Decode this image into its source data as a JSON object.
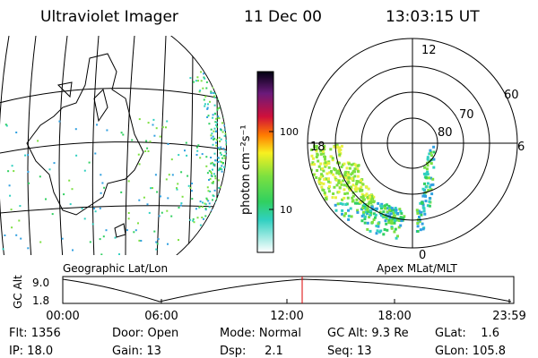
{
  "header": {
    "instrument": "Ultraviolet Imager",
    "date": "11 Dec 00",
    "time": "13:03:15 UT"
  },
  "colorbar": {
    "label": "photon cm⁻²s⁻¹",
    "ticks": [
      "100",
      "10"
    ]
  },
  "polar": {
    "mlt_labels": [
      "12",
      "6",
      "18",
      "0"
    ],
    "lat_labels": [
      "60",
      "70",
      "80"
    ]
  },
  "panel_labels": {
    "left": "Geographic Lat/Lon",
    "right": "Apex MLat/MLT"
  },
  "altitude": {
    "ylabel": "GC Alt",
    "yticks": [
      "9.0",
      "1.8"
    ],
    "xticks": [
      "00:00",
      "06:00",
      "12:00",
      "18:00",
      "23:59"
    ]
  },
  "info": {
    "rows": [
      [
        "Flt: 1356",
        "Door: Open",
        "Mode: Normal",
        "GC Alt: 9.3 Re",
        "GLat:    1.6"
      ],
      [
        "IP: 18.0",
        "Gain: 13",
        "Dsp:     2.1",
        "Seq: 13",
        "GLon: 105.8"
      ]
    ]
  }
}
